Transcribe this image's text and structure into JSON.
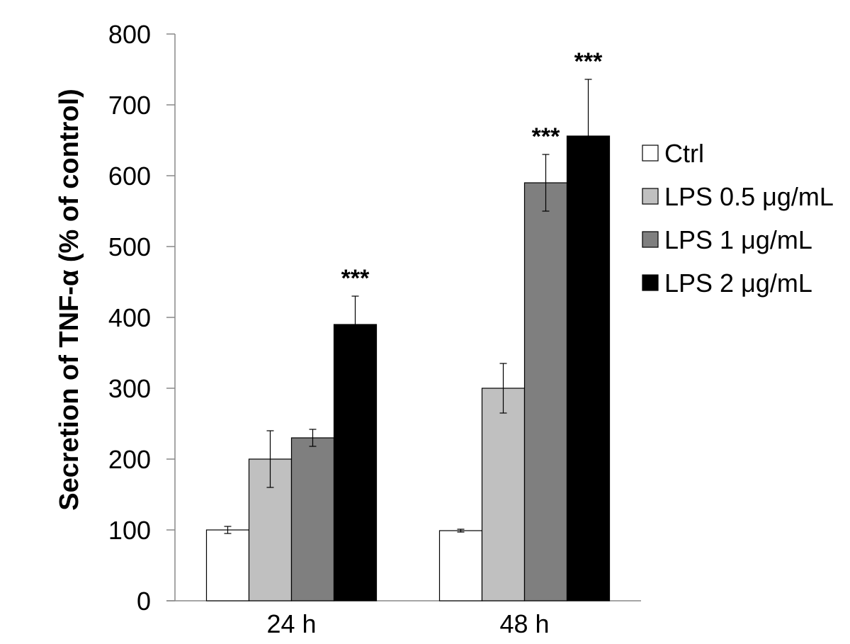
{
  "chart_data": {
    "type": "bar",
    "title": "",
    "xlabel": "",
    "ylabel": "Secretion of TNF-α (% of control)",
    "ylim": [
      0,
      800
    ],
    "yticks": [
      0,
      100,
      200,
      300,
      400,
      500,
      600,
      700,
      800
    ],
    "grid": false,
    "legend_position": "right",
    "categories": [
      "24 h",
      "48 h"
    ],
    "series": [
      {
        "name": "Ctrl",
        "color": "#ffffff",
        "values": [
          100,
          99
        ],
        "errors": [
          5,
          2
        ],
        "significance": [
          "",
          ""
        ]
      },
      {
        "name": "LPS 0.5 μg/mL",
        "color": "#c0c0c0",
        "values": [
          200,
          300
        ],
        "errors": [
          40,
          35
        ],
        "significance": [
          "",
          ""
        ]
      },
      {
        "name": "LPS 1 μg/mL",
        "color": "#7f7f7f",
        "values": [
          230,
          590
        ],
        "errors": [
          12,
          40
        ],
        "significance": [
          "",
          "***"
        ]
      },
      {
        "name": "LPS 2 μg/mL",
        "color": "#000000",
        "values": [
          390,
          656
        ],
        "errors": [
          40,
          80
        ],
        "significance": [
          "***",
          "***"
        ]
      }
    ]
  }
}
